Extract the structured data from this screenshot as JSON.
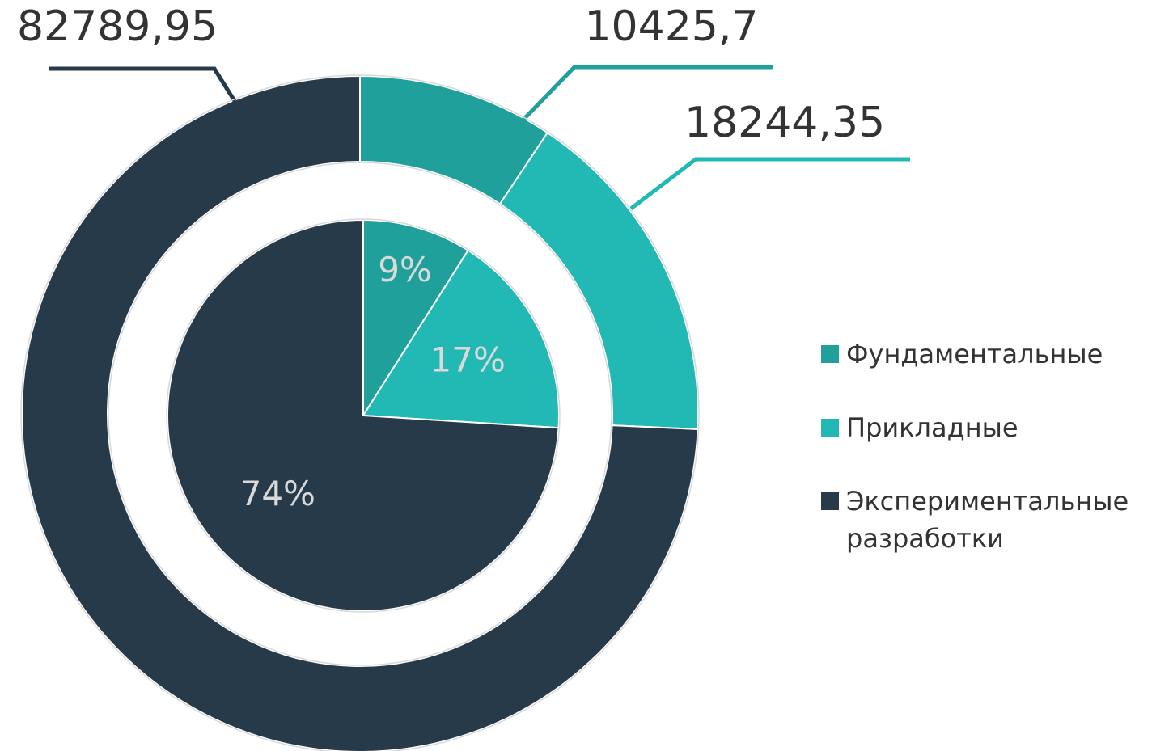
{
  "chart_data": [
    {
      "type": "donut",
      "categories": [
        "Фундаментальные",
        "Прикладные",
        "Экспериментальные разработки"
      ],
      "values": [
        10425.7,
        18244.35,
        82789.95
      ],
      "value_labels": [
        "10425,7",
        "18244,35",
        "82789,95"
      ],
      "colors": [
        "#1fa09b",
        "#22b9b5",
        "#263a4a"
      ]
    },
    {
      "type": "pie",
      "values": [
        9,
        17,
        74
      ],
      "value_labels": [
        "9%",
        "17%",
        "74%"
      ],
      "colors": [
        "#1fa09b",
        "#22b9b5",
        "#263a4a"
      ]
    }
  ]
}
